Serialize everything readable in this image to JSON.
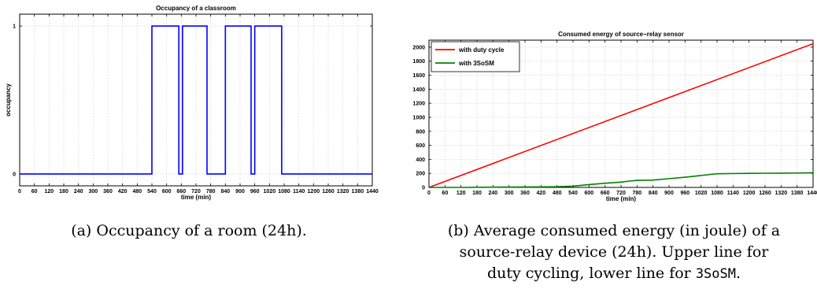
{
  "figure": {
    "captions": [
      {
        "text": "(a) Occupancy of a room (24h)."
      },
      {
        "lines": [
          "(b) Average consumed energy (in joule) of a",
          "source-relay device (24h). Upper line for"
        ],
        "last_prefix": "duty cycling, lower line for ",
        "last_mono": "3SoSM",
        "last_suffix": "."
      }
    ]
  },
  "colors": {
    "blue": "#0000ff",
    "red": "#ff0000",
    "green": "#008000",
    "grid": "#c8c8c8"
  },
  "chart_data": [
    {
      "type": "line",
      "title": "Occupancy of a classroom",
      "xlabel": "time (min)",
      "ylabel": "occupancy",
      "xlim": [
        0,
        1440
      ],
      "ylim": [
        -0.08,
        1.08
      ],
      "xticks": [
        0,
        60,
        120,
        180,
        240,
        300,
        360,
        420,
        480,
        540,
        600,
        660,
        720,
        780,
        840,
        900,
        960,
        1020,
        1080,
        1140,
        1200,
        1260,
        1320,
        1380,
        1440
      ],
      "yticks": [
        0,
        1
      ],
      "grid": true,
      "series": [
        {
          "color": "#0000ff",
          "x": [
            0,
            540,
            540,
            650,
            650,
            665,
            665,
            765,
            765,
            840,
            840,
            945,
            945,
            960,
            960,
            1070,
            1070,
            1440
          ],
          "y": [
            0,
            0,
            1,
            1,
            0,
            0,
            1,
            1,
            0,
            0,
            1,
            1,
            0,
            0,
            1,
            1,
            0,
            0
          ]
        }
      ]
    },
    {
      "type": "line",
      "title": "Consumed energy of source−relay sensor",
      "xlabel": "time (min)",
      "ylabel": "",
      "xlim": [
        0,
        1440
      ],
      "ylim": [
        0,
        2100
      ],
      "xticks": [
        0,
        60,
        120,
        180,
        240,
        300,
        360,
        420,
        480,
        540,
        600,
        660,
        720,
        780,
        840,
        900,
        960,
        1020,
        1080,
        1140,
        1200,
        1260,
        1320,
        1380,
        1440
      ],
      "yticks": [
        0,
        200,
        400,
        600,
        800,
        1000,
        1200,
        1400,
        1600,
        1800,
        2000
      ],
      "grid": true,
      "legend": "top-left",
      "series": [
        {
          "name": "with duty cycle",
          "color": "#ff0000",
          "x": [
            0,
            1440
          ],
          "y": [
            0,
            2050
          ]
        },
        {
          "name": "with 3SoSM",
          "color": "#008000",
          "x": [
            0,
            60,
            120,
            180,
            240,
            300,
            360,
            420,
            480,
            540,
            600,
            660,
            720,
            750,
            780,
            840,
            900,
            960,
            1020,
            1080,
            1140,
            1200,
            1260,
            1320,
            1380,
            1440
          ],
          "y": [
            0,
            0,
            0,
            2,
            4,
            5,
            6,
            8,
            10,
            18,
            40,
            60,
            75,
            90,
            100,
            105,
            125,
            145,
            170,
            195,
            198,
            200,
            202,
            203,
            205,
            208
          ]
        }
      ]
    }
  ]
}
